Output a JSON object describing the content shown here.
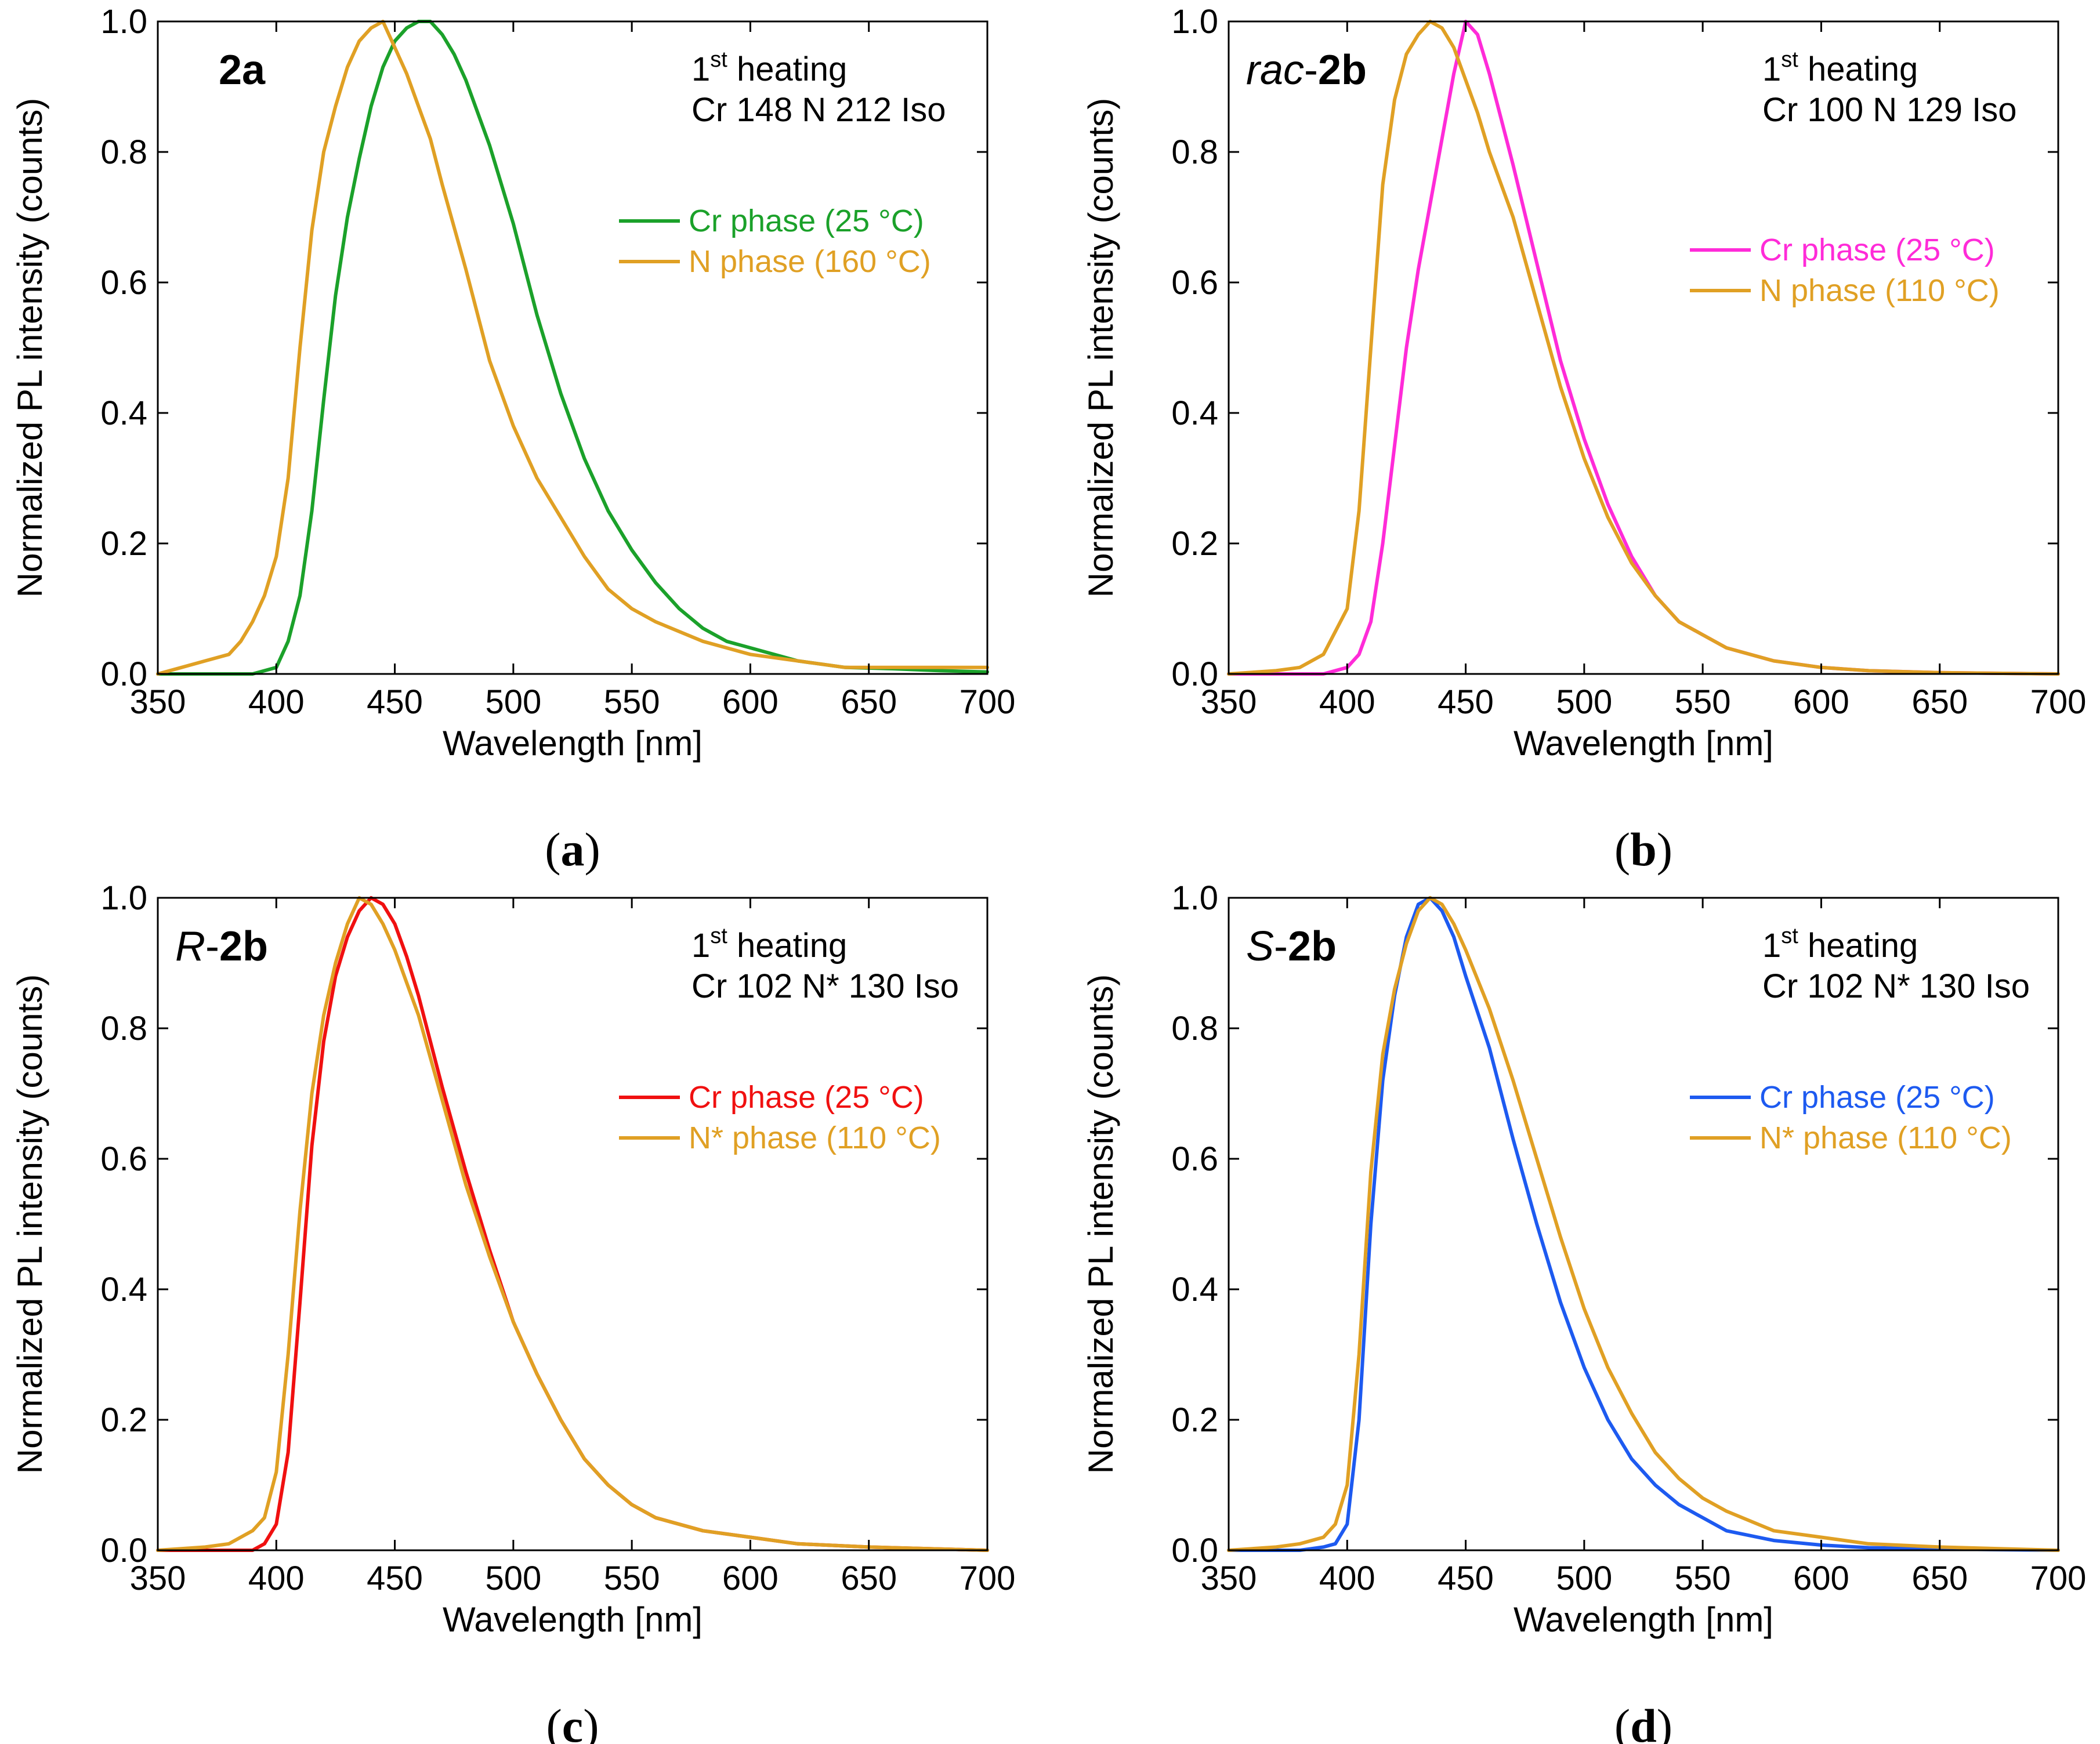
{
  "colors": {
    "green": "#1BA12A",
    "orange": "#E0A024",
    "magenta": "#FF2BD8",
    "red": "#F01010",
    "blue": "#1D5AF0",
    "axis": "#000000"
  },
  "chart_data": [
    {
      "type": "line",
      "panel_label": "a",
      "compound": {
        "prefix": "",
        "bold": "2a"
      },
      "info": {
        "ord_num": "1",
        "ord_sup": "st",
        "heating_text": " heating",
        "transition": "Cr 148 N 212 Iso"
      },
      "xlabel": "Wavelength [nm]",
      "ylabel": "Normalized PL intensity (counts)",
      "xlim": [
        350,
        700
      ],
      "ylim": [
        0,
        1.0
      ],
      "xticks": [
        "350",
        "400",
        "450",
        "500",
        "550",
        "600",
        "650",
        "700"
      ],
      "yticks": [
        "0.0",
        "0.2",
        "0.4",
        "0.6",
        "0.8",
        "1.0"
      ],
      "legend_position": "right",
      "series": [
        {
          "name": "Cr phase (25 °C)",
          "color": "#1BA12A",
          "x": [
            350,
            380,
            390,
            400,
            405,
            410,
            415,
            420,
            425,
            430,
            435,
            440,
            445,
            450,
            455,
            460,
            465,
            470,
            475,
            480,
            490,
            500,
            510,
            520,
            530,
            540,
            550,
            560,
            570,
            580,
            590,
            600,
            620,
            640,
            660,
            680,
            700
          ],
          "y": [
            0.0,
            0.0,
            0.0,
            0.01,
            0.05,
            0.12,
            0.25,
            0.42,
            0.58,
            0.7,
            0.79,
            0.87,
            0.93,
            0.97,
            0.99,
            1.0,
            1.0,
            0.98,
            0.95,
            0.91,
            0.81,
            0.69,
            0.55,
            0.43,
            0.33,
            0.25,
            0.19,
            0.14,
            0.1,
            0.07,
            0.05,
            0.04,
            0.02,
            0.01,
            0.008,
            0.005,
            0.003
          ]
        },
        {
          "name": "N phase (160 °C)",
          "color": "#E0A024",
          "x": [
            350,
            360,
            370,
            380,
            385,
            390,
            395,
            400,
            405,
            410,
            415,
            420,
            425,
            430,
            435,
            440,
            445,
            450,
            455,
            460,
            465,
            470,
            480,
            490,
            500,
            510,
            520,
            530,
            540,
            550,
            560,
            580,
            600,
            620,
            640,
            660,
            680,
            700
          ],
          "y": [
            0.0,
            0.01,
            0.02,
            0.03,
            0.05,
            0.08,
            0.12,
            0.18,
            0.3,
            0.5,
            0.68,
            0.8,
            0.87,
            0.93,
            0.97,
            0.99,
            1.0,
            0.96,
            0.92,
            0.87,
            0.82,
            0.75,
            0.62,
            0.48,
            0.38,
            0.3,
            0.24,
            0.18,
            0.13,
            0.1,
            0.08,
            0.05,
            0.03,
            0.02,
            0.01,
            0.01,
            0.01,
            0.01
          ]
        }
      ]
    },
    {
      "type": "line",
      "panel_label": "b",
      "compound": {
        "prefix": "rac",
        "bold": "2b"
      },
      "info": {
        "ord_num": "1",
        "ord_sup": "st",
        "heating_text": " heating",
        "transition": "Cr 100 N 129 Iso"
      },
      "xlabel": "Wavelength [nm]",
      "ylabel": "Normalized PL intensity (counts)",
      "xlim": [
        350,
        700
      ],
      "ylim": [
        0,
        1.0
      ],
      "xticks": [
        "350",
        "400",
        "450",
        "500",
        "550",
        "600",
        "650",
        "700"
      ],
      "yticks": [
        "0.0",
        "0.2",
        "0.4",
        "0.6",
        "0.8",
        "1.0"
      ],
      "legend_position": "right",
      "series": [
        {
          "name": "Cr phase (25 °C)",
          "color": "#FF2BD8",
          "x": [
            350,
            390,
            400,
            405,
            410,
            415,
            420,
            425,
            430,
            435,
            440,
            445,
            450,
            455,
            460,
            465,
            470,
            480,
            490,
            500,
            510,
            520,
            530,
            540,
            550,
            560,
            580,
            600,
            620,
            650,
            700
          ],
          "y": [
            0.0,
            0.0,
            0.01,
            0.03,
            0.08,
            0.2,
            0.35,
            0.5,
            0.62,
            0.72,
            0.82,
            0.92,
            1.0,
            0.98,
            0.92,
            0.85,
            0.78,
            0.63,
            0.48,
            0.36,
            0.26,
            0.18,
            0.12,
            0.08,
            0.06,
            0.04,
            0.02,
            0.01,
            0.005,
            0.002,
            0.0
          ]
        },
        {
          "name": "N phase (110 °C)",
          "color": "#E0A024",
          "x": [
            350,
            370,
            380,
            390,
            400,
            405,
            410,
            415,
            420,
            425,
            430,
            435,
            440,
            445,
            450,
            455,
            460,
            470,
            480,
            490,
            500,
            510,
            520,
            530,
            540,
            550,
            560,
            580,
            600,
            620,
            650,
            700
          ],
          "y": [
            0.0,
            0.005,
            0.01,
            0.03,
            0.1,
            0.25,
            0.5,
            0.75,
            0.88,
            0.95,
            0.98,
            1.0,
            0.99,
            0.96,
            0.91,
            0.86,
            0.8,
            0.7,
            0.57,
            0.44,
            0.33,
            0.24,
            0.17,
            0.12,
            0.08,
            0.06,
            0.04,
            0.02,
            0.01,
            0.005,
            0.002,
            0.0
          ]
        }
      ]
    },
    {
      "type": "line",
      "panel_label": "c",
      "compound": {
        "prefix": "R",
        "bold": "2b"
      },
      "info": {
        "ord_num": "1",
        "ord_sup": "st",
        "heating_text": " heating",
        "transition": "Cr 102 N* 130 Iso"
      },
      "xlabel": "Wavelength [nm]",
      "ylabel": "Normalized PL intensity (counts)",
      "xlim": [
        350,
        700
      ],
      "ylim": [
        0,
        1.0
      ],
      "xticks": [
        "350",
        "400",
        "450",
        "500",
        "550",
        "600",
        "650",
        "700"
      ],
      "yticks": [
        "0.0",
        "0.2",
        "0.4",
        "0.6",
        "0.8",
        "1.0"
      ],
      "legend_position": "right",
      "series": [
        {
          "name": "Cr phase (25 °C)",
          "color": "#F01010",
          "x": [
            350,
            380,
            390,
            395,
            400,
            405,
            410,
            415,
            420,
            425,
            430,
            435,
            440,
            445,
            450,
            455,
            460,
            470,
            480,
            490,
            500,
            510,
            520,
            530,
            540,
            550,
            560,
            580,
            600,
            620,
            650,
            700
          ],
          "y": [
            0.0,
            0.0,
            0.0,
            0.01,
            0.04,
            0.15,
            0.38,
            0.62,
            0.78,
            0.88,
            0.94,
            0.98,
            1.0,
            0.99,
            0.96,
            0.91,
            0.85,
            0.71,
            0.58,
            0.46,
            0.35,
            0.27,
            0.2,
            0.14,
            0.1,
            0.07,
            0.05,
            0.03,
            0.02,
            0.01,
            0.005,
            0.0
          ]
        },
        {
          "name": "N* phase (110 °C)",
          "color": "#E0A024",
          "x": [
            350,
            370,
            380,
            390,
            395,
            400,
            405,
            410,
            415,
            420,
            425,
            430,
            435,
            440,
            445,
            450,
            455,
            460,
            470,
            480,
            490,
            500,
            510,
            520,
            530,
            540,
            550,
            560,
            580,
            600,
            620,
            650,
            700
          ],
          "y": [
            0.0,
            0.005,
            0.01,
            0.03,
            0.05,
            0.12,
            0.3,
            0.52,
            0.7,
            0.82,
            0.9,
            0.96,
            1.0,
            0.99,
            0.96,
            0.92,
            0.87,
            0.82,
            0.69,
            0.56,
            0.45,
            0.35,
            0.27,
            0.2,
            0.14,
            0.1,
            0.07,
            0.05,
            0.03,
            0.02,
            0.01,
            0.005,
            0.0
          ]
        }
      ]
    },
    {
      "type": "line",
      "panel_label": "d",
      "compound": {
        "prefix": "S",
        "bold": "2b"
      },
      "info": {
        "ord_num": "1",
        "ord_sup": "st",
        "heating_text": " heating",
        "transition": "Cr 102 N* 130 Iso"
      },
      "xlabel": "Wavelength [nm]",
      "ylabel": "Normalized PL intensity (counts)",
      "xlim": [
        350,
        700
      ],
      "ylim": [
        0,
        1.0
      ],
      "xticks": [
        "350",
        "400",
        "450",
        "500",
        "550",
        "600",
        "650",
        "700"
      ],
      "yticks": [
        "0.0",
        "0.2",
        "0.4",
        "0.6",
        "0.8",
        "1.0"
      ],
      "legend_position": "right",
      "series": [
        {
          "name": "Cr phase (25 °C)",
          "color": "#1D5AF0",
          "x": [
            350,
            380,
            390,
            395,
            400,
            405,
            410,
            415,
            420,
            425,
            430,
            435,
            440,
            445,
            450,
            460,
            470,
            480,
            490,
            500,
            510,
            520,
            530,
            540,
            550,
            560,
            580,
            600,
            620,
            650,
            700
          ],
          "y": [
            0.0,
            0.0,
            0.005,
            0.01,
            0.04,
            0.2,
            0.5,
            0.72,
            0.85,
            0.94,
            0.99,
            1.0,
            0.98,
            0.94,
            0.88,
            0.77,
            0.63,
            0.5,
            0.38,
            0.28,
            0.2,
            0.14,
            0.1,
            0.07,
            0.05,
            0.03,
            0.015,
            0.008,
            0.004,
            0.002,
            0.0
          ]
        },
        {
          "name": "N* phase (110 °C)",
          "color": "#E0A024",
          "x": [
            350,
            370,
            380,
            390,
            395,
            400,
            405,
            410,
            415,
            420,
            425,
            430,
            435,
            440,
            445,
            450,
            460,
            470,
            480,
            490,
            500,
            510,
            520,
            530,
            540,
            550,
            560,
            580,
            600,
            620,
            650,
            700
          ],
          "y": [
            0.0,
            0.005,
            0.01,
            0.02,
            0.04,
            0.1,
            0.3,
            0.58,
            0.76,
            0.86,
            0.93,
            0.98,
            1.0,
            0.99,
            0.96,
            0.92,
            0.83,
            0.72,
            0.6,
            0.48,
            0.37,
            0.28,
            0.21,
            0.15,
            0.11,
            0.08,
            0.06,
            0.03,
            0.02,
            0.01,
            0.005,
            0.0
          ]
        }
      ]
    }
  ]
}
